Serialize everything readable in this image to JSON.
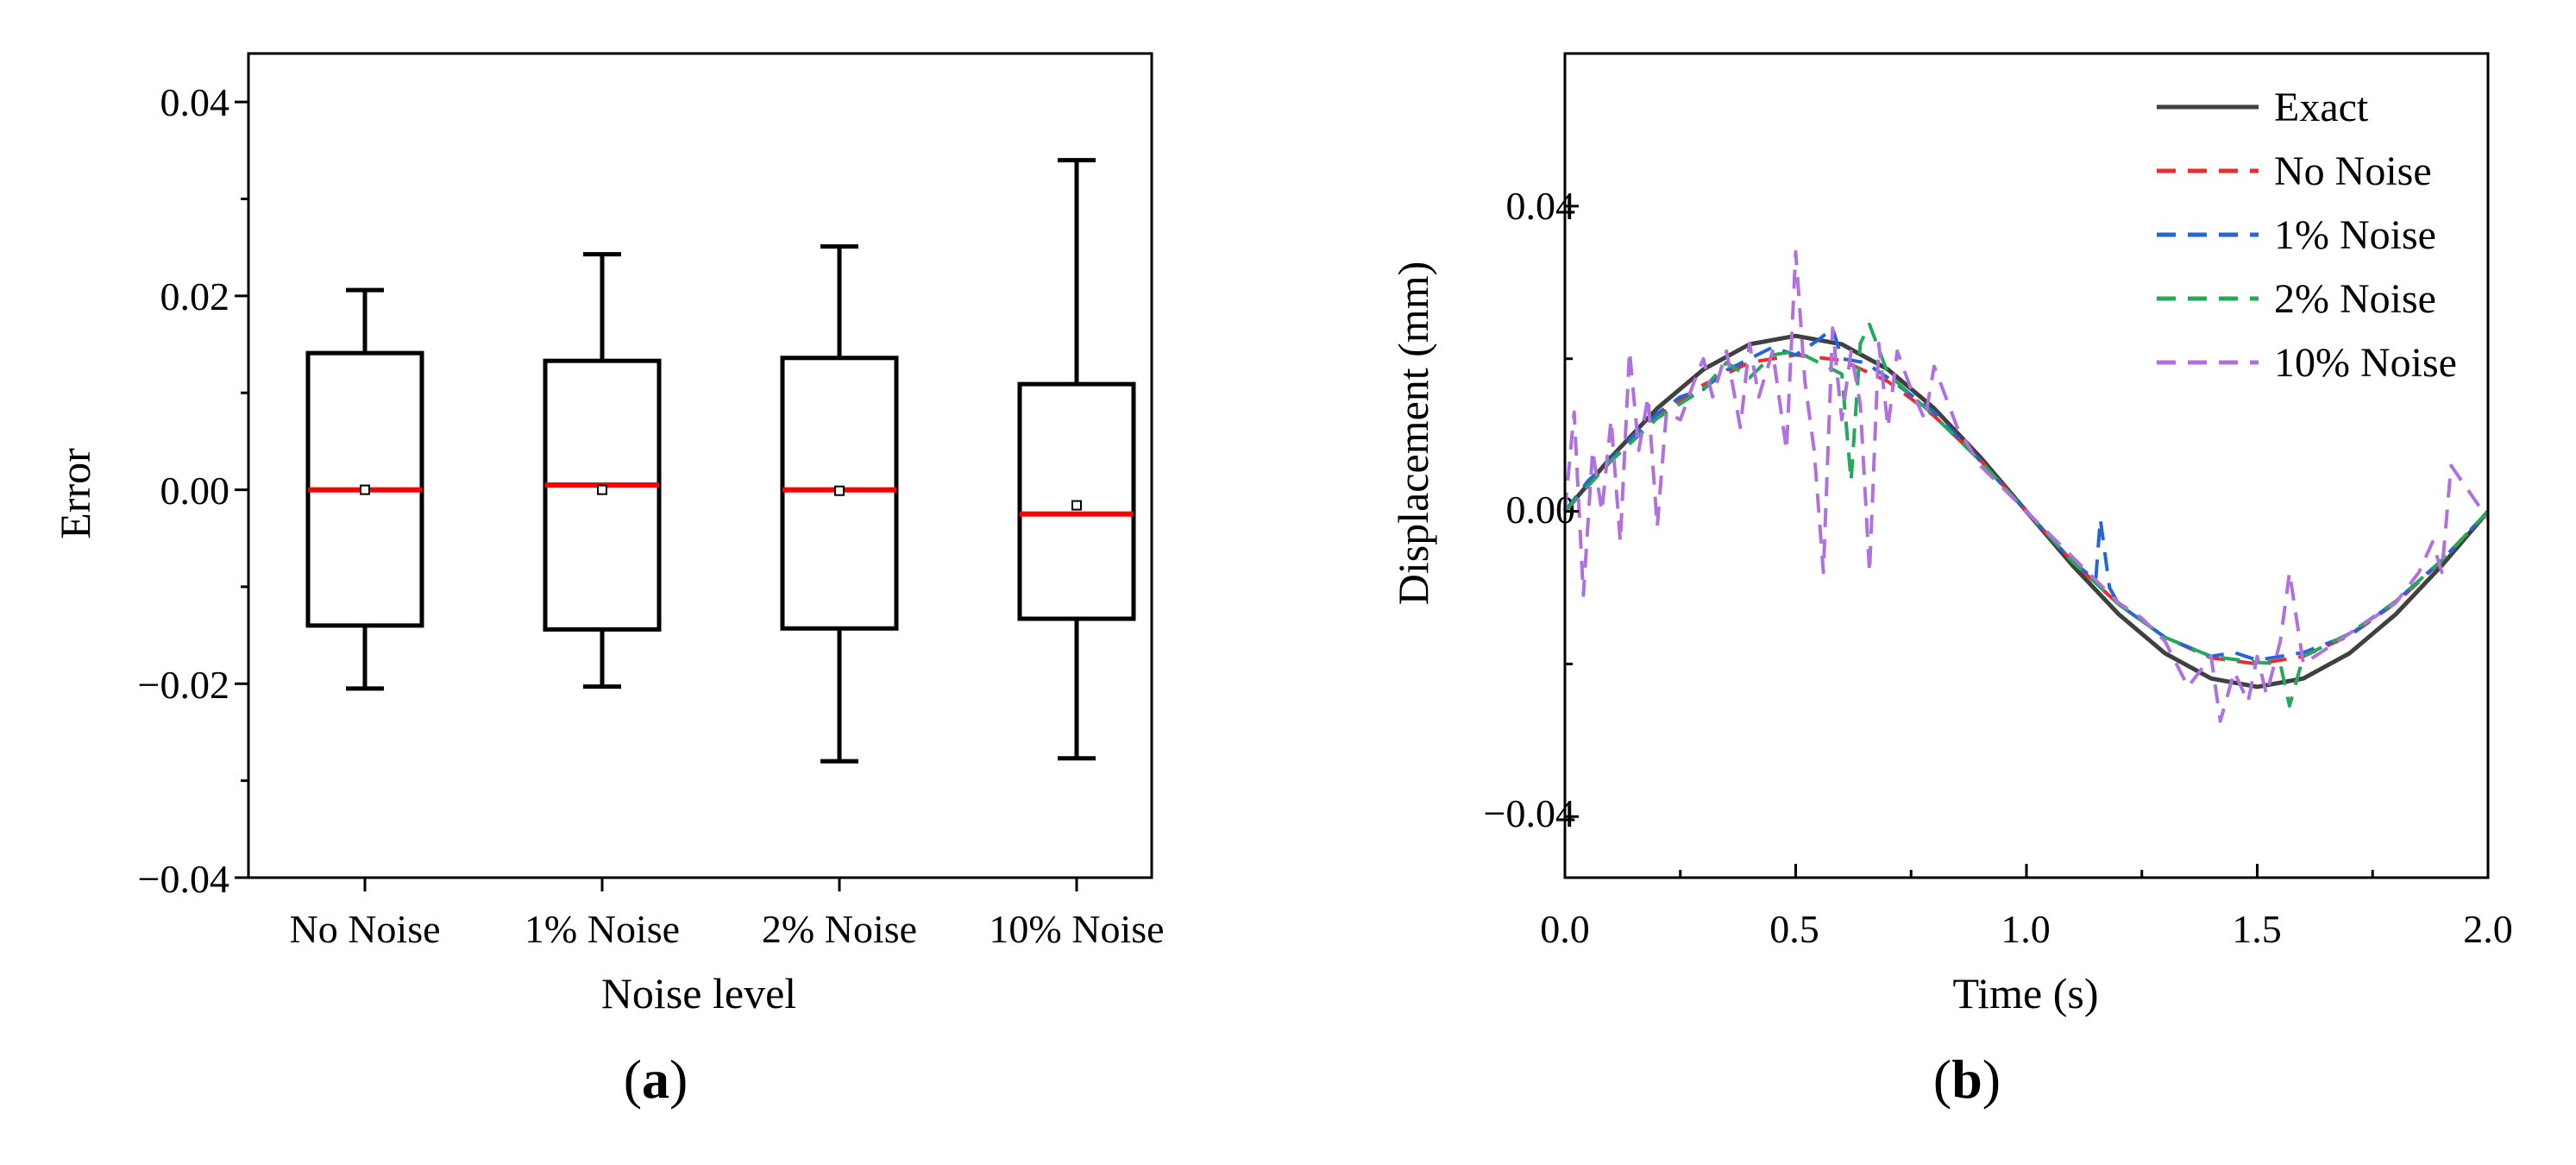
{
  "chart_data": [
    {
      "type": "box",
      "panel_label": "(a)",
      "panel_letter": "a",
      "xlabel": "Noise level",
      "ylabel": "Error",
      "ylim": [
        -0.04,
        0.045
      ],
      "yticks": [
        0.04,
        0.02,
        0.0,
        -0.02,
        -0.04
      ],
      "ytick_labels": [
        "0.04",
        "0.02",
        "0.00",
        "−0.02",
        "−0.04"
      ],
      "categories": [
        "No Noise",
        "1% Noise",
        "2% Noise",
        "10% Noise"
      ],
      "box_color": "#000000",
      "median_color": "#ff0000",
      "boxes": [
        {
          "label": "No Noise",
          "whisker_low": -0.0205,
          "q1": -0.014,
          "median": 0.0,
          "q3": 0.0141,
          "whisker_high": 0.0206,
          "mean": 0.0
        },
        {
          "label": "1% Noise",
          "whisker_low": -0.0203,
          "q1": -0.0144,
          "median": 0.0005,
          "q3": 0.0133,
          "whisker_high": 0.0243,
          "mean": 0.0
        },
        {
          "label": "2% Noise",
          "whisker_low": -0.028,
          "q1": -0.0143,
          "median": 0.0,
          "q3": 0.0136,
          "whisker_high": 0.0251,
          "mean": -0.0001
        },
        {
          "label": "10% Noise",
          "whisker_low": -0.0277,
          "q1": -0.0133,
          "median": -0.0025,
          "q3": 0.0109,
          "whisker_high": 0.034,
          "mean": -0.0016
        }
      ]
    },
    {
      "type": "line",
      "panel_label": "(b)",
      "panel_letter": "b",
      "xlabel": "Time (s)",
      "ylabel": "Displacement (mm)",
      "xlim": [
        0.0,
        2.0
      ],
      "ylim": [
        -0.048,
        0.06
      ],
      "xticks": [
        0.0,
        0.5,
        1.0,
        1.5,
        2.0
      ],
      "xtick_labels": [
        "0.0",
        "0.5",
        "1.0",
        "1.5",
        "2.0"
      ],
      "yticks": [
        0.04,
        0.0,
        -0.04
      ],
      "ytick_labels": [
        "0.04",
        "0.00",
        "−0.04"
      ],
      "legend_position": "top-right",
      "series": [
        {
          "name": "Exact",
          "color": "#404040",
          "dash": false,
          "x": [
            0.0,
            0.1,
            0.2,
            0.3,
            0.4,
            0.5,
            0.6,
            0.7,
            0.8,
            0.9,
            1.0,
            1.1,
            1.2,
            1.3,
            1.4,
            1.5,
            1.6,
            1.7,
            1.8,
            1.9,
            2.0
          ],
          "y": [
            0.0,
            0.0071,
            0.0135,
            0.0186,
            0.0219,
            0.023,
            0.0219,
            0.0186,
            0.0135,
            0.0071,
            0.0,
            -0.0071,
            -0.0135,
            -0.0186,
            -0.0219,
            -0.023,
            -0.0219,
            -0.0186,
            -0.0135,
            -0.0071,
            0.0
          ]
        },
        {
          "name": "No Noise",
          "color": "#ee2a2a",
          "dash": true,
          "x": [
            0.0,
            0.1,
            0.2,
            0.3,
            0.4,
            0.5,
            0.6,
            0.7,
            0.8,
            0.9,
            1.0,
            1.1,
            1.2,
            1.3,
            1.4,
            1.5,
            1.6,
            1.7,
            1.8,
            1.9,
            2.0
          ],
          "y": [
            0.0,
            0.0066,
            0.0124,
            0.0166,
            0.0195,
            0.0205,
            0.0198,
            0.017,
            0.0125,
            0.0067,
            0.0,
            -0.0066,
            -0.0122,
            -0.0165,
            -0.0192,
            -0.02,
            -0.019,
            -0.0163,
            -0.012,
            -0.0065,
            0.0
          ]
        },
        {
          "name": "1% Noise",
          "color": "#2466d8",
          "dash": true,
          "x": [
            0.0,
            0.05,
            0.1,
            0.15,
            0.2,
            0.25,
            0.3,
            0.35,
            0.4,
            0.45,
            0.5,
            0.55,
            0.58,
            0.6,
            0.65,
            0.7,
            0.8,
            0.9,
            1.0,
            1.1,
            1.15,
            1.16,
            1.18,
            1.2,
            1.3,
            1.4,
            1.45,
            1.5,
            1.55,
            1.6,
            1.7,
            1.8,
            1.9,
            2.0
          ],
          "y": [
            0.0,
            0.004,
            0.0068,
            0.01,
            0.0128,
            0.015,
            0.016,
            0.0185,
            0.02,
            0.0215,
            0.0205,
            0.0225,
            0.024,
            0.02,
            0.0195,
            0.0175,
            0.013,
            0.0066,
            0.0,
            -0.0066,
            -0.009,
            -0.001,
            -0.01,
            -0.0122,
            -0.0165,
            -0.019,
            -0.0185,
            -0.0195,
            -0.019,
            -0.0185,
            -0.0162,
            -0.0118,
            -0.0064,
            0.0
          ]
        },
        {
          "name": "2% Noise",
          "color": "#26a85a",
          "dash": true,
          "x": [
            0.0,
            0.1,
            0.2,
            0.3,
            0.35,
            0.4,
            0.45,
            0.5,
            0.55,
            0.6,
            0.62,
            0.64,
            0.66,
            0.7,
            0.8,
            0.9,
            1.0,
            1.1,
            1.2,
            1.3,
            1.4,
            1.5,
            1.55,
            1.57,
            1.6,
            1.7,
            1.8,
            1.9,
            2.0
          ],
          "y": [
            0.0,
            0.0066,
            0.0122,
            0.016,
            0.0195,
            0.0175,
            0.0205,
            0.021,
            0.0195,
            0.018,
            0.004,
            0.022,
            0.0245,
            0.018,
            0.0125,
            0.0066,
            0.0,
            -0.0066,
            -0.0122,
            -0.0165,
            -0.019,
            -0.0198,
            -0.02,
            -0.0255,
            -0.019,
            -0.016,
            -0.0118,
            -0.0064,
            0.0
          ]
        },
        {
          "name": "10% Noise",
          "color": "#b070de",
          "dash": true,
          "x": [
            0.0,
            0.02,
            0.04,
            0.06,
            0.08,
            0.1,
            0.12,
            0.14,
            0.16,
            0.18,
            0.2,
            0.22,
            0.25,
            0.28,
            0.3,
            0.32,
            0.35,
            0.38,
            0.4,
            0.42,
            0.45,
            0.48,
            0.5,
            0.52,
            0.54,
            0.56,
            0.58,
            0.6,
            0.62,
            0.64,
            0.66,
            0.68,
            0.7,
            0.72,
            0.75,
            0.78,
            0.8,
            0.85,
            0.9,
            1.0,
            1.1,
            1.2,
            1.25,
            1.3,
            1.35,
            1.4,
            1.42,
            1.45,
            1.48,
            1.5,
            1.52,
            1.55,
            1.57,
            1.6,
            1.7,
            1.8,
            1.85,
            1.88,
            1.9,
            1.92,
            2.0
          ],
          "y": [
            0.0,
            0.013,
            -0.011,
            0.008,
            0.0,
            0.012,
            -0.004,
            0.021,
            0.008,
            0.015,
            -0.002,
            0.013,
            0.012,
            0.017,
            0.02,
            0.015,
            0.021,
            0.011,
            0.022,
            0.015,
            0.021,
            0.008,
            0.034,
            0.017,
            0.008,
            -0.008,
            0.024,
            0.012,
            0.021,
            0.014,
            -0.008,
            0.022,
            0.011,
            0.021,
            0.016,
            0.012,
            0.019,
            0.011,
            0.006,
            0.0,
            -0.006,
            -0.012,
            -0.014,
            -0.017,
            -0.023,
            -0.019,
            -0.0275,
            -0.021,
            -0.025,
            -0.019,
            -0.024,
            -0.017,
            -0.008,
            -0.02,
            -0.016,
            -0.012,
            -0.008,
            -0.004,
            -0.008,
            0.006,
            -0.001
          ]
        }
      ]
    }
  ]
}
